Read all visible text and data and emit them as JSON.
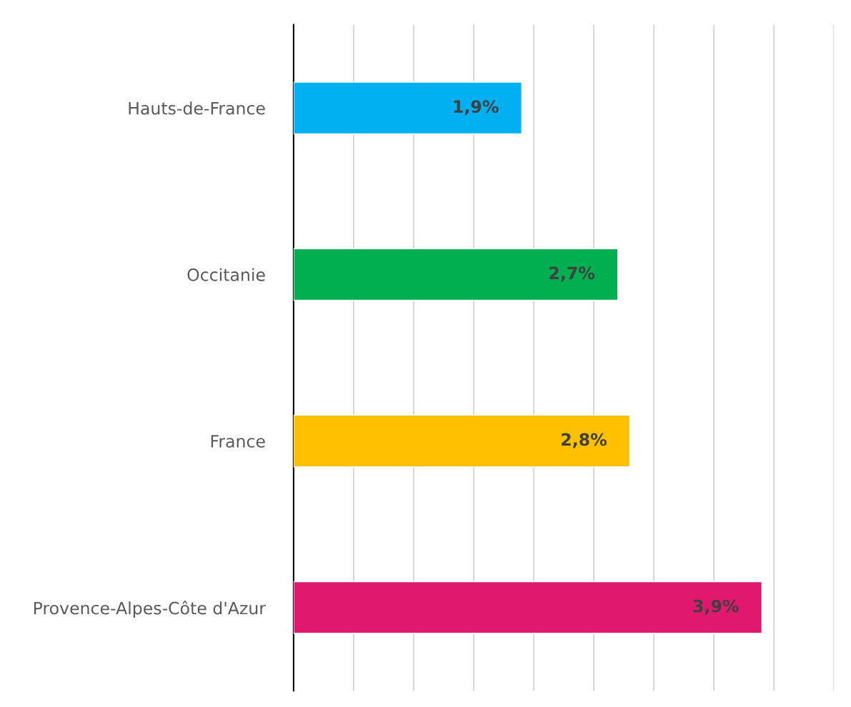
{
  "chart_data": {
    "type": "bar",
    "orientation": "horizontal",
    "categories": [
      "Hauts-de-France",
      "Occitanie",
      "France",
      "Provence-Alpes-Côte d'Azur"
    ],
    "values": [
      1.9,
      2.7,
      2.8,
      3.9
    ],
    "colors": [
      "#00b0f0",
      "#00b050",
      "#ffc000",
      "#e0196e"
    ],
    "value_labels": [
      "1,9%",
      "2,7%",
      "2,8%",
      "3,9%"
    ],
    "xlim": [
      0,
      4.5
    ],
    "xticks": [
      {
        "value": 0,
        "label": null
      },
      {
        "value": 0.5,
        "label": null
      },
      {
        "value": 1,
        "label": null
      },
      {
        "value": 1.5,
        "label": null
      },
      {
        "value": 2,
        "label": null
      },
      {
        "value": 2.5,
        "label": null
      },
      {
        "value": 3,
        "label": null
      },
      {
        "value": 3.5,
        "label": null
      },
      {
        "value": 4,
        "label": null
      },
      {
        "value": 4.5,
        "label": null
      }
    ],
    "grid": "x",
    "tick_labels": "y"
  }
}
